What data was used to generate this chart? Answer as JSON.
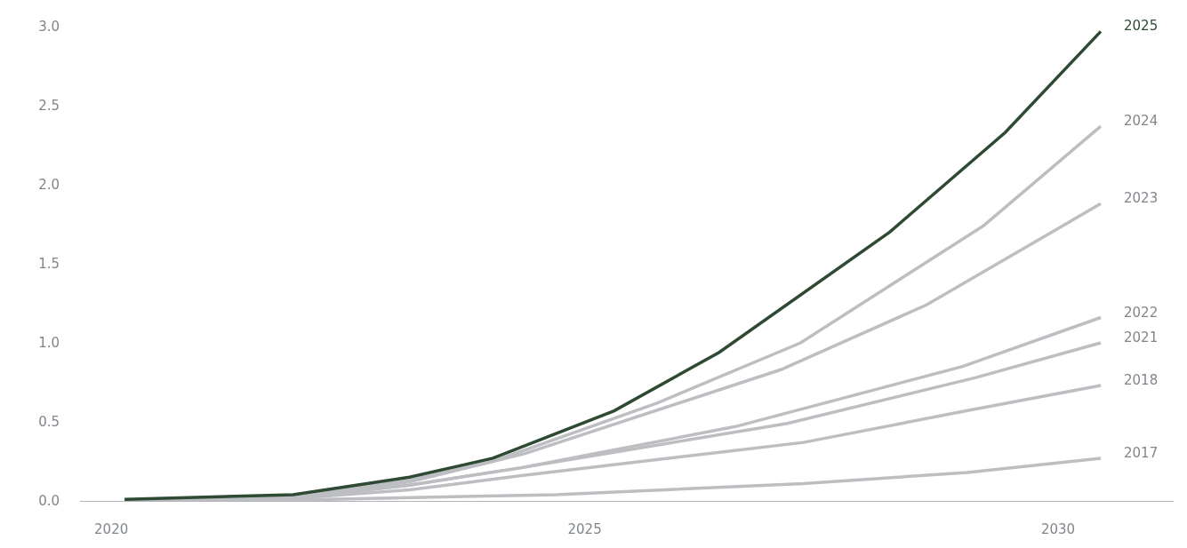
{
  "chart_data": {
    "type": "line",
    "legend": false,
    "marker": "none",
    "line_style": "solid",
    "xlim": [
      2019.67,
      2031.22
    ],
    "xticks": [
      2020,
      2025,
      2030
    ],
    "ylim": [
      0,
      3.0
    ],
    "yticks": [
      {
        "value": 0,
        "label": "0.0"
      },
      {
        "value": 0.5,
        "label": "0.5"
      },
      {
        "value": 1,
        "label": "1.0"
      },
      {
        "value": 1.5,
        "label": "1.5"
      },
      {
        "value": 2,
        "label": "2.0"
      },
      {
        "value": 2.5,
        "label": "2.5"
      },
      {
        "value": 3,
        "label": "3.0"
      }
    ],
    "series": [
      {
        "name": "2025",
        "color": "#2e4a33",
        "x": [
          2020.14,
          2021.92,
          2023.15,
          2024.03,
          2025.31,
          2026.42,
          2028.22,
          2029.44,
          2030.45
        ],
        "values": [
          0.01,
          0.04,
          0.15,
          0.27,
          0.57,
          0.94,
          1.7,
          2.33,
          2.97
        ]
      },
      {
        "name": "2024",
        "color": "#bcbec2",
        "x": [
          2020.14,
          2021.92,
          2023.15,
          2024.03,
          2025.77,
          2027.28,
          2029.21,
          2030.45
        ],
        "values": [
          0.0,
          0.03,
          0.13,
          0.25,
          0.62,
          1.0,
          1.74,
          2.37
        ]
      },
      {
        "name": "2023",
        "color": "#bcbec2",
        "x": [
          2020.14,
          2021.92,
          2023.15,
          2024.37,
          2027.07,
          2028.61,
          2030.45
        ],
        "values": [
          0.0,
          0.03,
          0.12,
          0.3,
          0.83,
          1.24,
          1.88
        ]
      },
      {
        "name": "2022",
        "color": "#bcbec2",
        "x": [
          2020.14,
          2021.92,
          2023.15,
          2024.33,
          2026.59,
          2028.99,
          2030.45
        ],
        "values": [
          0.0,
          0.02,
          0.1,
          0.21,
          0.47,
          0.85,
          1.16
        ]
      },
      {
        "name": "2021",
        "color": "#bcbec2",
        "x": [
          2020.14,
          2021.92,
          2023.15,
          2024.33,
          2027.14,
          2029.13,
          2030.45
        ],
        "values": [
          0.0,
          0.02,
          0.1,
          0.21,
          0.49,
          0.78,
          1.0
        ]
      },
      {
        "name": "2018",
        "color": "#bcbec2",
        "x": [
          2020.14,
          2021.92,
          2023.15,
          2024.33,
          2027.31,
          2029.03,
          2030.45
        ],
        "values": [
          0.0,
          0.015,
          0.07,
          0.16,
          0.37,
          0.57,
          0.73
        ]
      },
      {
        "name": "2017",
        "color": "#bcbec2",
        "x": [
          2020.14,
          2021.92,
          2024.7,
          2027.31,
          2029.04,
          2030.45
        ],
        "values": [
          0.0,
          0.005,
          0.04,
          0.11,
          0.18,
          0.27
        ]
      }
    ]
  }
}
